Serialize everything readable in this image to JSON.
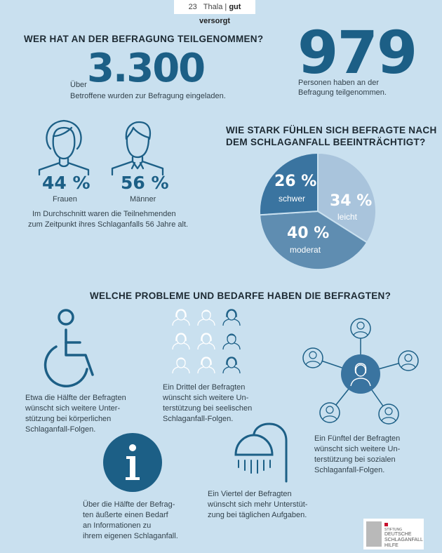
{
  "header": {
    "page_number": "23",
    "magazine": "Thala",
    "section": "gut versorgt"
  },
  "participation": {
    "title": "WER HAT AN DER BEFRAGUNG TEILGENOMMEN?",
    "invited_prefix": "Über",
    "invited_number": "3.300",
    "invited_text": "Betroffene wurden zur Befragung eingeladen.",
    "participants_number": "979",
    "participants_text_1": "Personen haben an der",
    "participants_text_2": "Befragung teilgenommen."
  },
  "gender": {
    "female_pct": "44 %",
    "female_label": "Frauen",
    "male_pct": "56 %",
    "male_label": "Männer",
    "age_text_1": "Im Durchschnitt waren die Teilnehmenden",
    "age_text_2": "zum Zeitpunkt ihres Schlaganfalls 56 Jahre alt."
  },
  "impairment": {
    "title_1": "WIE STARK FÜHLEN SICH BEFRAGTE NACH",
    "title_2": "DEM SCHLAGANFALL BEEINTRÄCHTIGT?"
  },
  "chart_data": {
    "type": "pie",
    "slices": [
      {
        "label": "leicht",
        "value": 34,
        "display": "34 %",
        "color": "#a9c4dc"
      },
      {
        "label": "moderat",
        "value": 40,
        "display": "40 %",
        "color": "#5f8db1"
      },
      {
        "label": "schwer",
        "value": 26,
        "display": "26 %",
        "color": "#3a74a0"
      }
    ]
  },
  "problems": {
    "title": "WELCHE PROBLEME UND BEDARFE HABEN DIE BEFRAGTEN?",
    "physical": [
      "Etwa die Hälfte der Befragten",
      "wünscht sich weitere Unter-",
      "stützung bei körperlichen",
      "Schlaganfall-Folgen."
    ],
    "mental": [
      "Ein Drittel der Befragten",
      "wünscht sich weitere Un-",
      "terstützung bei seelischen",
      "Schlaganfall-Folgen."
    ],
    "social": [
      "Ein Fünftel der Befragten",
      "wünscht sich weitere Un-",
      "terstützung bei sozialen",
      "Schlaganfall-Folgen."
    ],
    "information": [
      "Über die Hälfte der Befrag-",
      "ten äußerte einen Bedarf",
      "an Informationen zu",
      "ihrem eigenen Schlaganfall."
    ],
    "daily": [
      "Ein Viertel der Befragten",
      "wünscht sich mehr Unterstüt-",
      "zung bei täglichen Aufgaben."
    ]
  },
  "logo": {
    "line1": "STIFTUNG",
    "line2": "DEUTSCHE",
    "line3": "SCHLAGANFALL",
    "line4": "HILFE"
  },
  "colors": {
    "background": "#c9e0ef",
    "accent": "#1c5f86"
  }
}
